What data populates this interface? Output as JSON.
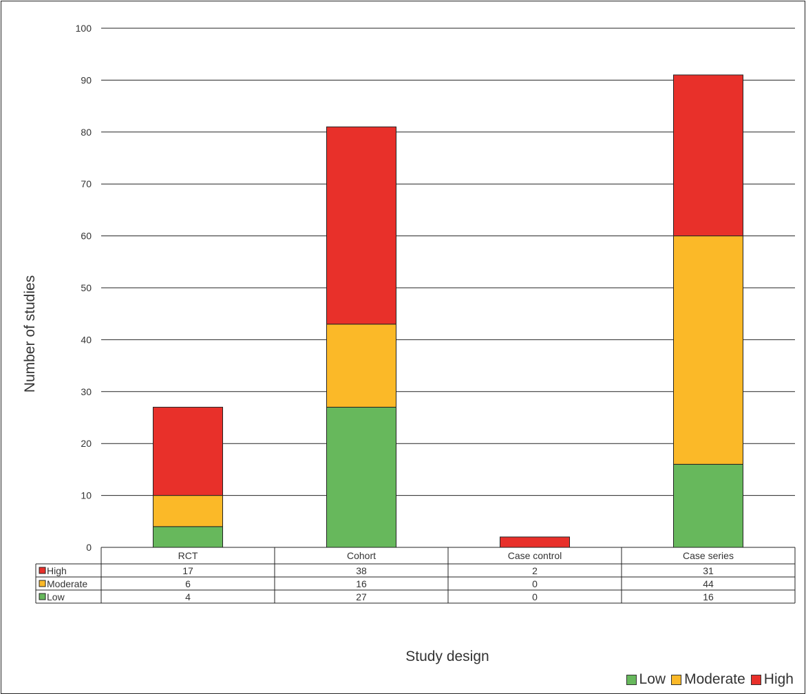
{
  "chart_data": {
    "type": "bar",
    "stacked": true,
    "categories": [
      "RCT",
      "Cohort",
      "Case control",
      "Case series"
    ],
    "series": [
      {
        "name": "Low",
        "values": [
          4,
          27,
          0,
          16
        ],
        "color": "#67b85c"
      },
      {
        "name": "Moderate",
        "values": [
          6,
          16,
          0,
          44
        ],
        "color": "#fbb928"
      },
      {
        "name": "High",
        "values": [
          17,
          38,
          2,
          31
        ],
        "color": "#e8302a"
      }
    ],
    "xlabel": "Study design",
    "ylabel": "Number of studies",
    "ylim": [
      0,
      100
    ],
    "yticks": [
      "0",
      "10",
      "20",
      "30",
      "40",
      "50",
      "60",
      "70",
      "80",
      "90",
      "100"
    ],
    "grid": true,
    "legend": {
      "position": "bottom-right",
      "items": [
        "Low",
        "Moderate",
        "High"
      ]
    },
    "data_table": {
      "rows": [
        {
          "label": "High",
          "values": [
            "17",
            "38",
            "2",
            "31"
          ]
        },
        {
          "label": "Moderate",
          "values": [
            "6",
            "16",
            "0",
            "44"
          ]
        },
        {
          "label": "Low",
          "values": [
            "4",
            "27",
            "0",
            "16"
          ]
        }
      ]
    }
  }
}
